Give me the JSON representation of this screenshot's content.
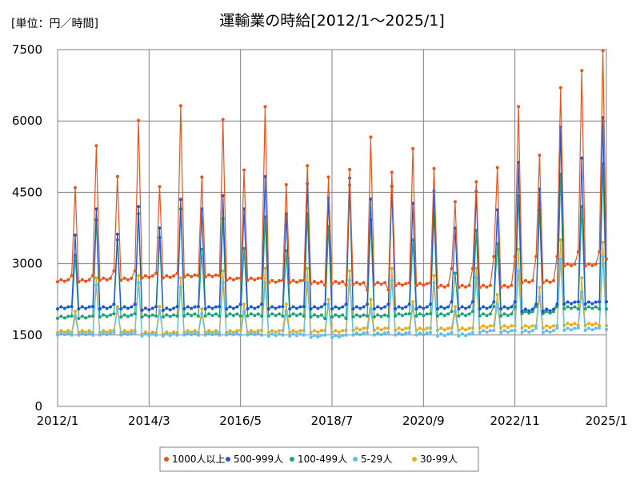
{
  "chart_data": {
    "type": "line",
    "title": "運輸業の時給[2012/1～2025/1]",
    "unit_label": "[単位：円／時間]",
    "xlabel": "",
    "ylabel": "",
    "x_range": [
      "2012-01",
      "2025-01"
    ],
    "x_ticks": [
      "2012/1",
      "2014/3",
      "2016/5",
      "2018/7",
      "2020/9",
      "2022/11",
      "2025/1"
    ],
    "ylim": [
      0,
      7500
    ],
    "y_ticks": [
      "0",
      "1500",
      "3000",
      "4500",
      "6000",
      "7500"
    ],
    "grid": true,
    "legend_position": "bottom",
    "series": [
      {
        "name": "1000人以上",
        "color": "#e8541c",
        "annual_peak_dec": [
          4600,
          5480,
          4830,
          6010,
          4620,
          6320,
          4820,
          6030,
          4970,
          6300,
          4660,
          5060,
          4820,
          4980,
          5660,
          4920,
          5420,
          5000,
          4300,
          4720,
          5020,
          6300,
          5280,
          6700,
          7060,
          7480
        ],
        "base": [
          2620,
          2650,
          2700,
          2720,
          2650,
          2600,
          2580,
          2560,
          2540,
          2500,
          2500,
          2600,
          2950,
          3100,
          3150,
          3200,
          3200,
          3150,
          3000,
          2950,
          3000,
          3050,
          3000,
          3000,
          3050,
          3100,
          3150
        ],
        "mid_year": [
          2800,
          2900,
          2850,
          2800,
          2750,
          2700,
          2600,
          2500,
          2650,
          2950,
          3200,
          3200,
          3300,
          3400,
          3450,
          3500,
          3600,
          3450,
          3350,
          3200,
          3100,
          3350,
          3400,
          3300,
          3300,
          3350
        ]
      },
      {
        "name": "500-999人",
        "color": "#1f56d4",
        "annual_peak_dec": [
          3600,
          4150,
          3620,
          4200,
          3750,
          4350,
          4150,
          4430,
          4150,
          4830,
          4050,
          4680,
          4380,
          4800,
          4360,
          4620,
          4270,
          4530,
          3750,
          4520,
          4130,
          5130,
          4570,
          5870,
          5220,
          6070
        ],
        "base": [
          2050,
          2050,
          2020,
          2050,
          2050,
          2050,
          2050,
          2050,
          2050,
          2050,
          2050,
          2000,
          2150,
          2200,
          2200,
          2200,
          2200,
          2200,
          2250,
          2250,
          2250,
          2300,
          2400,
          2450,
          2500,
          2600,
          2700
        ],
        "mid_year": [
          2150,
          2200,
          2150,
          2150,
          2200,
          2150,
          2200,
          2200,
          2200,
          2250,
          2250,
          2200,
          2250,
          2350,
          2350,
          2400,
          2350,
          2300,
          2300,
          2350,
          2450,
          2650,
          2700,
          2750,
          2850,
          2900
        ]
      },
      {
        "name": "100-499人",
        "color": "#1aa374",
        "annual_peak_dec": [
          3180,
          3920,
          3500,
          4050,
          3550,
          4150,
          3300,
          3950,
          3320,
          3980,
          3270,
          4050,
          3780,
          4650,
          3920,
          4630,
          3500,
          4080,
          2800,
          3700,
          3420,
          4420,
          4130,
          4880,
          4200,
          5100
        ],
        "base": [
          1850,
          1880,
          1880,
          1900,
          1900,
          1900,
          1880,
          1880,
          1900,
          1900,
          1900,
          1950,
          2050,
          2050,
          2050,
          2050,
          2000,
          2000,
          1950,
          1950,
          2000,
          2050,
          2150,
          2200,
          2250,
          2250,
          2250
        ],
        "mid_year": [
          1950,
          2000,
          1950,
          1950,
          1950,
          1950,
          1900,
          1950,
          2000,
          2050,
          2150,
          2150,
          2100,
          2150,
          2100,
          2100,
          2100,
          2150,
          2100,
          2150,
          2250,
          2300,
          2300,
          2350,
          2300,
          2350
        ]
      },
      {
        "name": "5-29人",
        "color": "#5bc0ef",
        "annual_peak_dec": [
          1900,
          2550,
          2050,
          2600,
          2000,
          2500,
          1950,
          2600,
          2000,
          2600,
          2000,
          2600,
          2150,
          2650,
          2050,
          2650,
          2100,
          2600,
          2000,
          2700,
          2150,
          2850,
          2300,
          3100,
          2400,
          3150
        ],
        "base": [
          1500,
          1500,
          1480,
          1500,
          1500,
          1480,
          1450,
          1500,
          1500,
          1480,
          1550,
          1550,
          1600,
          1620,
          1620,
          1650,
          1650,
          1650,
          1650,
          1650,
          1700,
          1700,
          1700,
          1700,
          1750,
          1750,
          1800
        ],
        "mid_year": [
          1550,
          1600,
          1550,
          1550,
          1550,
          1550,
          1550,
          1600,
          1600,
          1600,
          1650,
          1700,
          1700,
          1700,
          1700,
          1700,
          1700,
          1700,
          1700,
          1750,
          1750,
          1750,
          1750,
          1800,
          1800,
          1850
        ]
      },
      {
        "name": "30-99人",
        "color": "#e8ac18",
        "annual_peak_dec": [
          2000,
          2700,
          2100,
          2750,
          2100,
          2700,
          2050,
          2850,
          2150,
          2900,
          2150,
          2900,
          2250,
          2850,
          2250,
          2900,
          2200,
          2750,
          2100,
          2900,
          2350,
          3300,
          2500,
          3500,
          2700,
          3450
        ],
        "base": [
          1550,
          1550,
          1520,
          1550,
          1550,
          1550,
          1550,
          1600,
          1600,
          1600,
          1650,
          1650,
          1700,
          1700,
          1700,
          1700,
          1700,
          1700,
          1700,
          1700,
          1750,
          1750,
          1750,
          1800,
          1800,
          1850,
          1850
        ],
        "mid_year": [
          1600,
          1650,
          1600,
          1600,
          1650,
          1650,
          1650,
          1700,
          1700,
          1700,
          1750,
          1750,
          1750,
          1750,
          1750,
          1750,
          1750,
          1800,
          1800,
          1800,
          1800,
          1850,
          1850,
          1900,
          1900,
          1950
        ]
      }
    ]
  }
}
